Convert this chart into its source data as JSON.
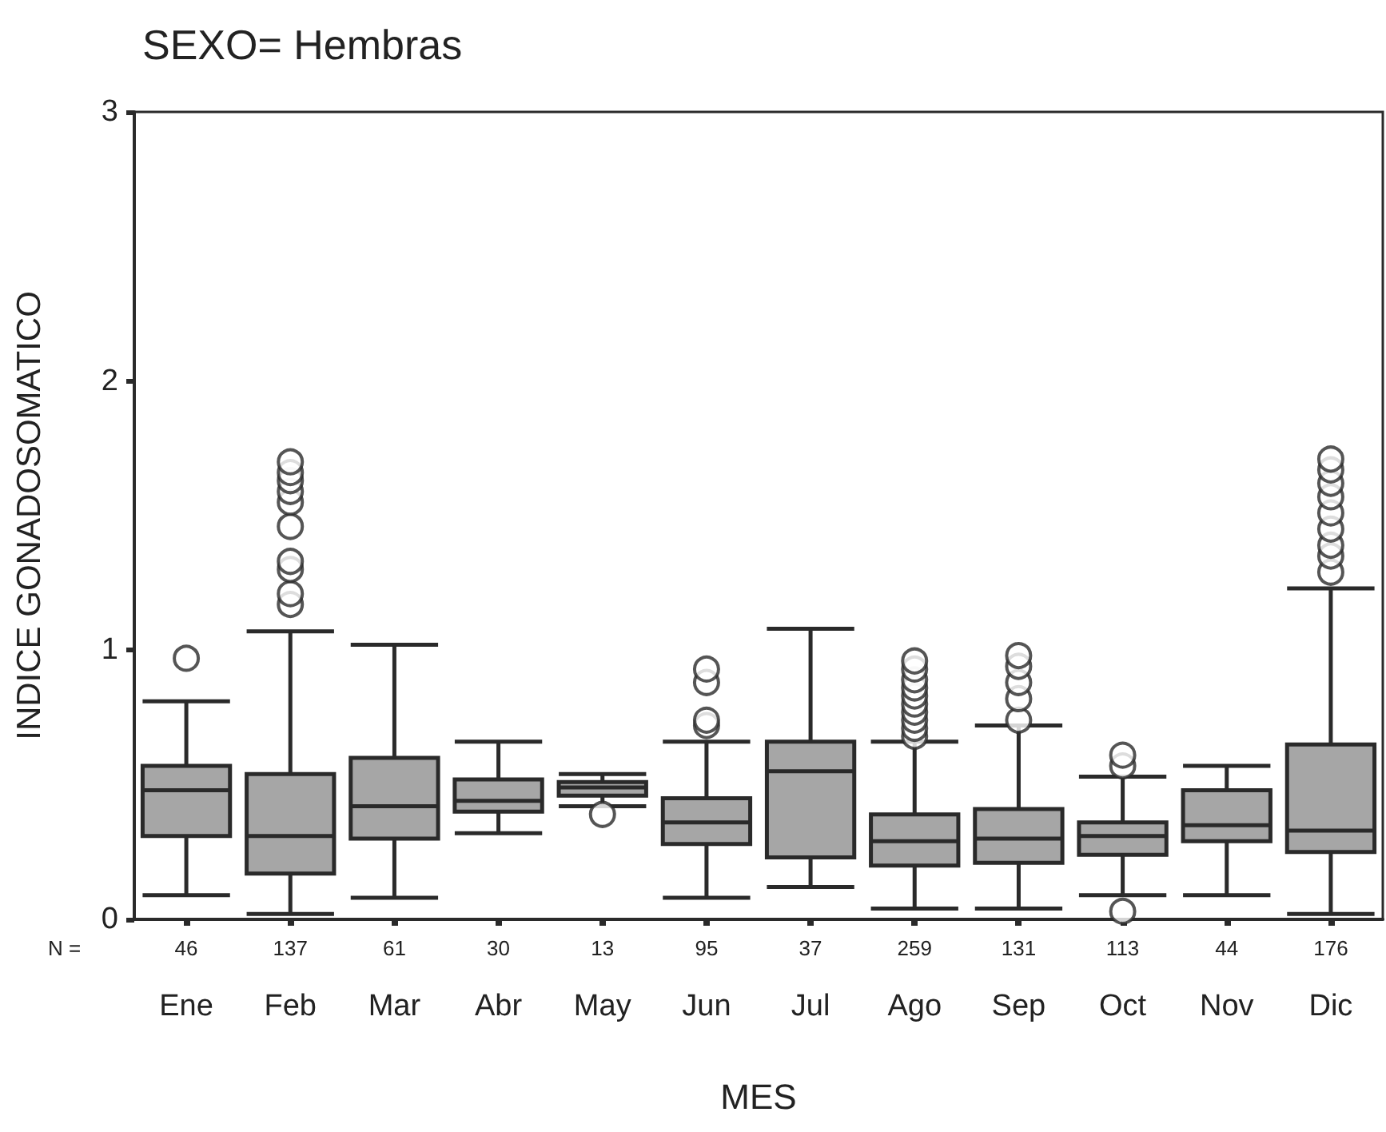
{
  "chart_data": {
    "type": "box",
    "title": "SEXO= Hembras",
    "xlabel": "MES",
    "ylabel": "INDICE GONADOSOMATICO",
    "categories": [
      "Ene",
      "Feb",
      "Mar",
      "Abr",
      "May",
      "Jun",
      "Jul",
      "Ago",
      "Sep",
      "Oct",
      "Nov",
      "Dic"
    ],
    "color": "#a6a6a6",
    "boxes": [
      {
        "low": 0.09,
        "q1": 0.31,
        "median": 0.48,
        "q3": 0.57,
        "high": 0.81,
        "outliers": [
          0.97
        ]
      },
      {
        "low": 0.02,
        "q1": 0.17,
        "median": 0.31,
        "q3": 0.54,
        "high": 1.07,
        "outliers": [
          1.17,
          1.21,
          1.3,
          1.33,
          1.46,
          1.55,
          1.59,
          1.63,
          1.66,
          1.7
        ]
      },
      {
        "low": 0.08,
        "q1": 0.3,
        "median": 0.42,
        "q3": 0.6,
        "high": 1.02
      },
      {
        "low": 0.32,
        "q1": 0.4,
        "median": 0.44,
        "q3": 0.52,
        "high": 0.66
      },
      {
        "low": 0.42,
        "q1": 0.46,
        "median": 0.49,
        "q3": 0.51,
        "high": 0.54,
        "outliers": [
          0.39
        ]
      },
      {
        "low": 0.08,
        "q1": 0.28,
        "median": 0.36,
        "q3": 0.45,
        "high": 0.66,
        "outliers": [
          0.72,
          0.74,
          0.88,
          0.93
        ]
      },
      {
        "low": 0.12,
        "q1": 0.23,
        "median": 0.55,
        "q3": 0.66,
        "high": 1.08
      },
      {
        "low": 0.04,
        "q1": 0.2,
        "median": 0.29,
        "q3": 0.39,
        "high": 0.66,
        "outliers": [
          0.68,
          0.71,
          0.74,
          0.77,
          0.8,
          0.83,
          0.86,
          0.89,
          0.93,
          0.96
        ]
      },
      {
        "low": 0.04,
        "q1": 0.21,
        "median": 0.3,
        "q3": 0.41,
        "high": 0.72,
        "outliers": [
          0.74,
          0.82,
          0.88,
          0.94,
          0.98
        ]
      },
      {
        "low": 0.09,
        "q1": 0.24,
        "median": 0.31,
        "q3": 0.36,
        "high": 0.53,
        "outliers": [
          0.03,
          0.57,
          0.61
        ]
      },
      {
        "low": 0.09,
        "q1": 0.29,
        "median": 0.35,
        "q3": 0.48,
        "high": 0.57
      },
      {
        "low": 0.02,
        "q1": 0.25,
        "median": 0.33,
        "q3": 0.65,
        "high": 1.23,
        "outliers": [
          1.29,
          1.35,
          1.39,
          1.45,
          1.51,
          1.57,
          1.62,
          1.67,
          1.71
        ]
      }
    ],
    "ylim": [
      0,
      3
    ],
    "yticks": [
      0,
      1,
      2,
      3
    ],
    "grid": false,
    "annotations": [
      "N =",
      "46",
      "137",
      "61",
      "30",
      "13",
      "95",
      "37",
      "259",
      "131",
      "113",
      "44",
      "176"
    ]
  }
}
